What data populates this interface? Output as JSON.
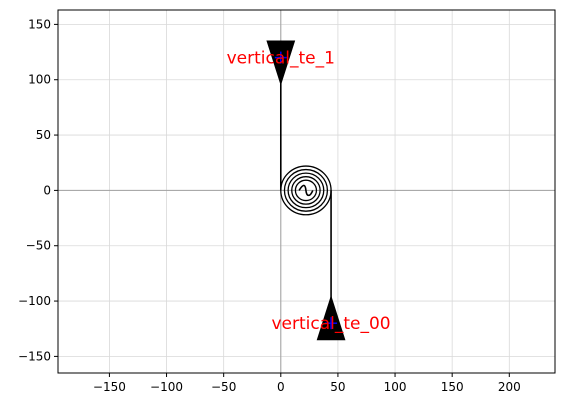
{
  "chart_data": {
    "type": "scatter",
    "title": "",
    "xlabel": "",
    "ylabel": "",
    "xlim": [
      -195,
      240
    ],
    "ylim": [
      -165,
      163
    ],
    "xticks": [
      -150,
      -100,
      -50,
      0,
      50,
      100,
      150,
      200
    ],
    "yticks": [
      -150,
      -100,
      -50,
      0,
      50,
      100,
      150
    ],
    "grid": true,
    "colors": {
      "structure": "#000000",
      "label": "#ff0000",
      "marker": "#0000ff",
      "grid": "#d9d9d9",
      "axis_line": "#a0a0a0"
    },
    "waveguide": {
      "vertical": [
        [
          0,
          0
        ],
        [
          0,
          100
        ]
      ],
      "lower_vertical": [
        [
          44,
          0
        ],
        [
          44,
          -100
        ]
      ],
      "spiral_center": [
        22,
        0
      ],
      "spiral_turns": 5,
      "spiral_outer_radius": 22,
      "spiral_inner_radius": 6
    },
    "ports": [
      {
        "name": "vertical_te_1",
        "x": 0,
        "y": 120,
        "taper": [
          [
            -12,
            135
          ],
          [
            12,
            135
          ],
          [
            0,
            96
          ]
        ]
      },
      {
        "name": "vertical_te_00",
        "x": 44,
        "y": -120,
        "taper": [
          [
            32,
            -135
          ],
          [
            56,
            -135
          ],
          [
            44,
            -96
          ]
        ]
      }
    ]
  }
}
